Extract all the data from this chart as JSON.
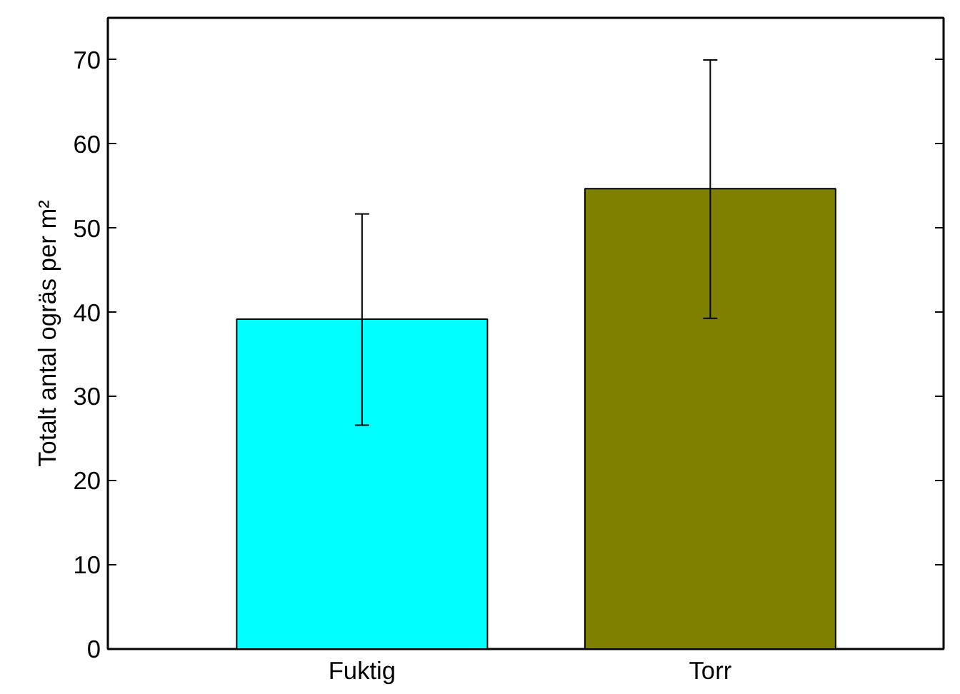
{
  "chart_data": {
    "type": "bar",
    "ylabel": "Totalt antal ogräs per m²",
    "categories": [
      "Fuktig",
      "Torr"
    ],
    "values": [
      39.2,
      54.7
    ],
    "colors": [
      "#00ffff",
      "#808000"
    ],
    "errors": [
      [
        26.6,
        51.7
      ],
      [
        39.3,
        70.0
      ]
    ],
    "ylim": [
      0,
      75
    ],
    "yticks": [
      0,
      10,
      20,
      30,
      40,
      50,
      60,
      70
    ],
    "grid": false
  }
}
